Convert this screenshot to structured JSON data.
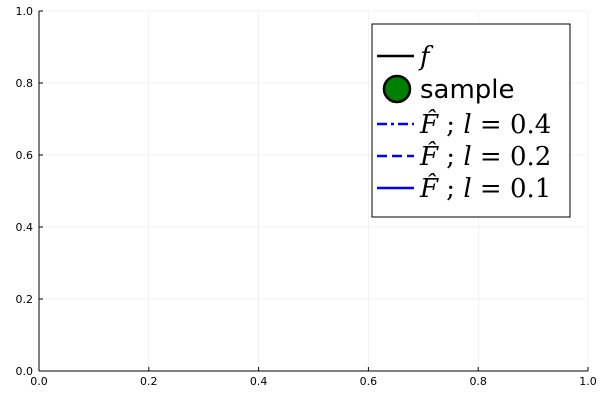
{
  "chart_data": {
    "type": "line",
    "title": "",
    "xlabel": "",
    "ylabel": "",
    "xlim": [
      0,
      1
    ],
    "ylim": [
      0,
      1
    ],
    "x_ticks": [
      "0.0",
      "0.2",
      "0.4",
      "0.6",
      "0.8",
      "1.0"
    ],
    "y_ticks": [
      "0.0",
      "0.2",
      "0.4",
      "0.6",
      "0.8",
      "1.0"
    ],
    "grid": true,
    "legend_position": "top-right",
    "series": [
      {
        "name": "f",
        "kind": "line",
        "color": "#000000",
        "dash": "solid",
        "values": []
      },
      {
        "name": "sample",
        "kind": "marker",
        "color": "#008000",
        "edge_color": "#000000",
        "values": []
      },
      {
        "name": "F̂ ; l = 0.4",
        "kind": "line",
        "color": "#0000ff",
        "dash": "dashdot",
        "values": []
      },
      {
        "name": "F̂ ; l = 0.2",
        "kind": "line",
        "color": "#0000ff",
        "dash": "dash",
        "values": []
      },
      {
        "name": "F̂ ; l = 0.1",
        "kind": "line",
        "color": "#0000ff",
        "dash": "solid",
        "values": []
      }
    ]
  }
}
